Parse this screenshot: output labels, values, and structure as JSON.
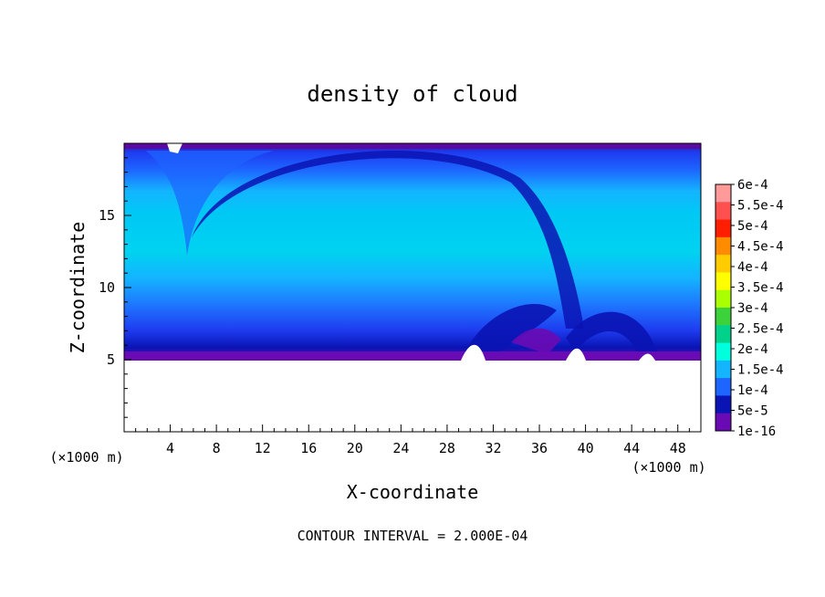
{
  "chart_data": {
    "type": "heatmap",
    "title": "density of cloud",
    "xlabel": "X-coordinate",
    "ylabel": "Z-coordinate",
    "x_unit": "(×1000 m)",
    "y_unit": "(×1000 m)",
    "xlim": [
      0,
      50
    ],
    "ylim": [
      0,
      20
    ],
    "x_ticks": [
      4,
      8,
      12,
      16,
      20,
      24,
      28,
      32,
      36,
      40,
      44,
      48
    ],
    "y_ticks": [
      5,
      10,
      15
    ],
    "grid": false,
    "footnote": "CONTOUR INTERVAL = 2.000E-04",
    "colorbar": {
      "labels": [
        "6e-4",
        "5.5e-4",
        "5e-4",
        "4.5e-4",
        "4e-4",
        "3.5e-4",
        "3e-4",
        "2.5e-4",
        "2e-4",
        "1.5e-4",
        "1e-4",
        "5e-5",
        "1e-16"
      ],
      "colors": [
        "#ff9a9a",
        "#ff5050",
        "#ff1e00",
        "#ff8c00",
        "#ffcc00",
        "#ffff00",
        "#aaff00",
        "#3cd23c",
        "#00d28c",
        "#00ffdc",
        "#14b4ff",
        "#1e64ff",
        "#0a14b4",
        "#6a0ab4"
      ]
    },
    "field_description_values": {
      "cloud_base_z": 5,
      "cloud_top_z": 20,
      "max_density_approx": 0.0002
    }
  }
}
